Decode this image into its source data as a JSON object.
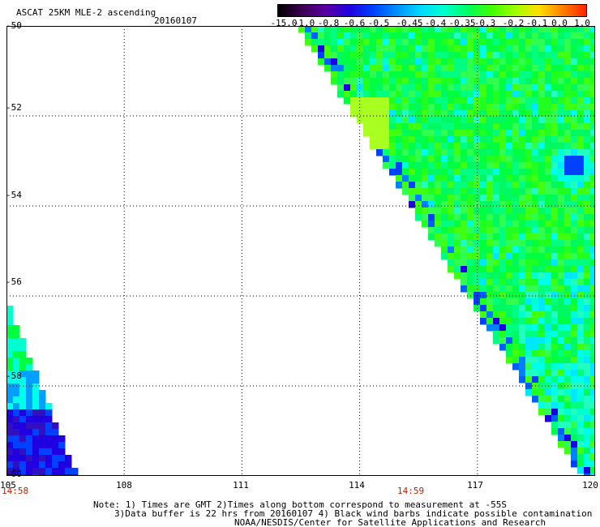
{
  "header": {
    "title": "ASCAT 25KM MLE-2 ascending",
    "date": "20160107"
  },
  "colorbar": {
    "labels": [
      "-15.0",
      "-1.0",
      "-0.8",
      "-0.6",
      "-0.5",
      "-0.45",
      "-0.4",
      "-0.35",
      "-0.3",
      "-0.2",
      "-0.1",
      "0.0",
      "1.0"
    ],
    "colors": [
      "#000000",
      "#3a0050",
      "#5a00a0",
      "#2000e0",
      "#0040ff",
      "#0090ff",
      "#00d8ff",
      "#00ffd0",
      "#00ff60",
      "#40ff00",
      "#a0ff00",
      "#ffe000",
      "#ff8000",
      "#ff2000"
    ]
  },
  "map": {
    "lat_labels": [
      "-50",
      "-52",
      "-54",
      "-56",
      "-58",
      "-60"
    ],
    "lon_labels": [
      "105",
      "108",
      "111",
      "114",
      "117",
      "120"
    ],
    "time_labels": [
      "14:58",
      "14:59"
    ],
    "lat_range": [
      -60,
      -50
    ],
    "lon_range": [
      105,
      120
    ],
    "grid": true
  },
  "footer": {
    "note_line1": "Note: 1) Times are GMT 2)Times along bottom correspond to measurement at -55S",
    "note_line2": "3)Data buffer is 22 hrs from 20160107 4) Black wind barbs indicate possible contamination",
    "credit": "NOAA/NESDIS/Center for Satellite Applications and Research"
  }
}
